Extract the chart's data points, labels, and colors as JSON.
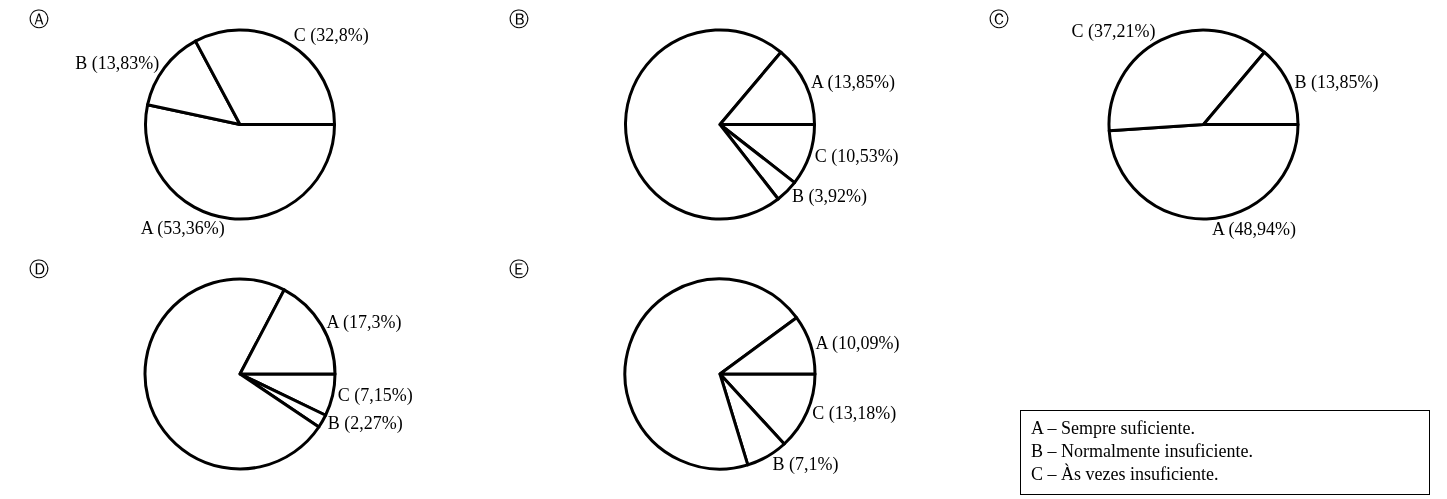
{
  "chart_data": [
    {
      "type": "pie",
      "title": "Ⓐ",
      "categories": [
        "A",
        "B",
        "C"
      ],
      "values": [
        53.36,
        13.83,
        32.8
      ],
      "colors": [
        "#ffffff",
        "#ffffff",
        "#ffffff"
      ],
      "value_labels": [
        "(53,36%)",
        "(13,83%)",
        "(32,8%)"
      ]
    },
    {
      "type": "pie",
      "title": "Ⓑ",
      "categories": [
        "C",
        "B",
        null,
        "A"
      ],
      "values": [
        10.53,
        3.92,
        71.7,
        13.85
      ],
      "colors": [
        "#ffffff",
        "#ffffff",
        "#ffffff",
        "#ffffff"
      ],
      "value_labels": [
        "(10,53%)",
        "(3,92%)",
        null,
        "(13,85%)"
      ]
    },
    {
      "type": "pie",
      "title": "Ⓒ",
      "categories": [
        "A",
        "C",
        "B"
      ],
      "values": [
        48.94,
        37.21,
        13.85
      ],
      "colors": [
        "#ffffff",
        "#ffffff",
        "#ffffff"
      ],
      "value_labels": [
        "(48,94%)",
        "(37,21%)",
        "(13,85%)"
      ]
    },
    {
      "type": "pie",
      "title": "Ⓓ",
      "categories": [
        "C",
        "B",
        null,
        "A"
      ],
      "values": [
        7.15,
        2.27,
        73.28,
        17.3
      ],
      "colors": [
        "#ffffff",
        "#ffffff",
        "#ffffff",
        "#ffffff"
      ],
      "value_labels": [
        "(7,15%)",
        "(2,27%)",
        null,
        "(17,3%)"
      ]
    },
    {
      "type": "pie",
      "title": "Ⓔ",
      "categories": [
        "C",
        "B",
        null,
        "A"
      ],
      "values": [
        13.18,
        7.1,
        69.63,
        10.09
      ],
      "colors": [
        "#ffffff",
        "#ffffff",
        "#ffffff",
        "#ffffff"
      ],
      "value_labels": [
        "(13,18%)",
        "(7,1%)",
        null,
        "(10,09%)"
      ]
    },
    {
      "type": "other",
      "annotations": [
        "A – Sempre suficiente.",
        "B – Normalmente insuficiente.",
        "C – Às vezes insuficiente."
      ]
    }
  ]
}
